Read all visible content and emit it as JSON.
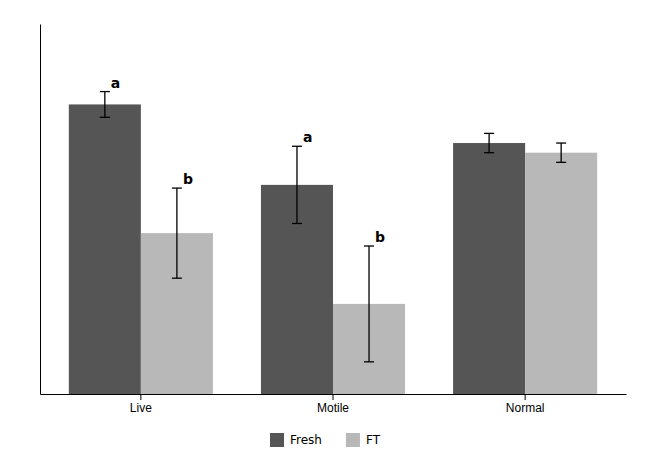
{
  "chart_data": {
    "type": "bar",
    "categories": [
      "Live",
      "Motile",
      "Normal"
    ],
    "series": [
      {
        "name": "Fresh",
        "color": "#555555",
        "values": [
          90,
          65,
          78
        ],
        "errors": [
          4,
          12,
          3
        ],
        "annotations": [
          "a",
          "a",
          null
        ]
      },
      {
        "name": "FT",
        "color": "#b8b8b8",
        "values": [
          50,
          28,
          75
        ],
        "errors": [
          14,
          18,
          3
        ],
        "annotations": [
          "b",
          "b",
          null
        ]
      }
    ],
    "ylim": [
      0,
      115
    ],
    "grid": false,
    "tick_labels": "x",
    "legend": "bottom"
  }
}
